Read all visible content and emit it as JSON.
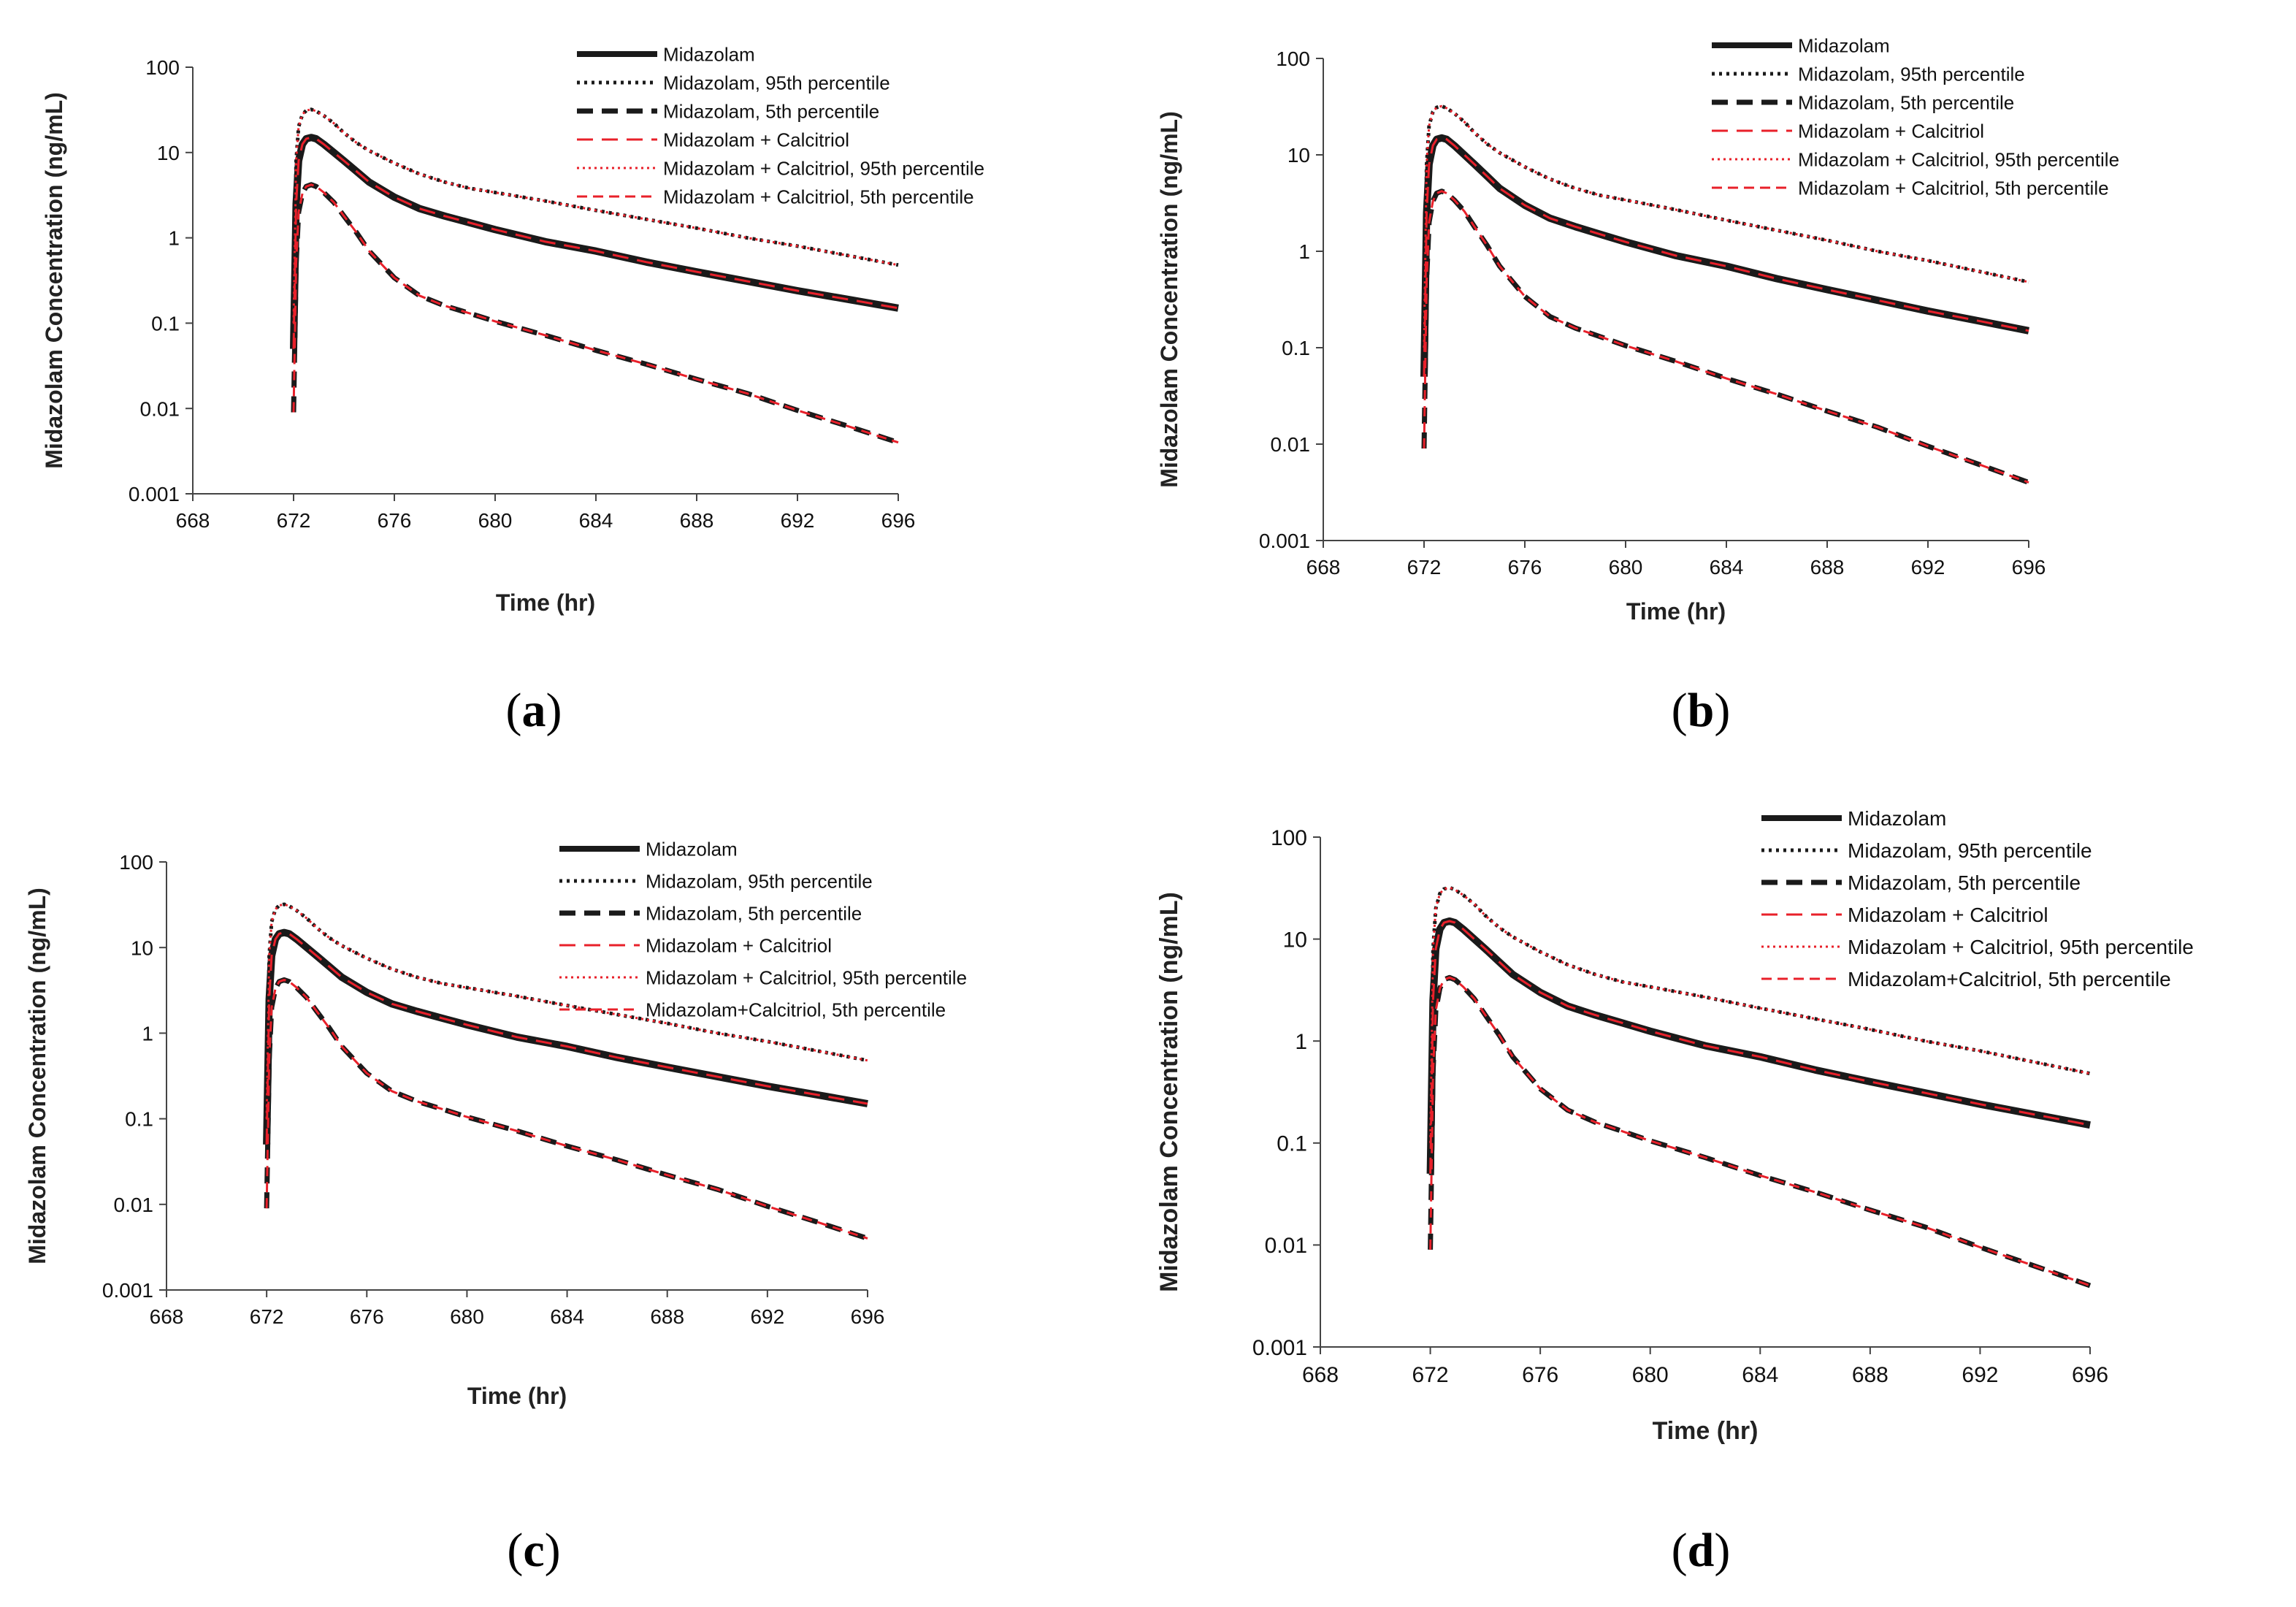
{
  "colors": {
    "black": "#1a1a1a",
    "red": "#e8202a",
    "axis": "#444444"
  },
  "chart_data": [
    {
      "type": "line",
      "panel_label": "a",
      "ylabel": "Midazolam Concentration (ng/mL)",
      "xlabel": "Time (hr)",
      "yscale": "log",
      "ylim": [
        0.001,
        100
      ],
      "xlim": [
        668,
        696
      ],
      "xticks": [
        "668",
        "672",
        "676",
        "680",
        "684",
        "688",
        "692",
        "696"
      ],
      "yticks": [
        "0.001",
        "0.01",
        "0.1",
        "1",
        "10",
        "100"
      ],
      "legend": [
        "Midazolam",
        "Midazolam, 95th percentile",
        "Midazolam, 5th percentile",
        "Midazolam + Calcitriol",
        "Midazolam + Calcitriol, 95th percentile",
        "Midazolam + Calcitriol, 5th percentile"
      ]
    },
    {
      "type": "line",
      "panel_label": "b",
      "ylabel": "Midazolam Concentration (ng/mL)",
      "xlabel": "Time (hr)",
      "yscale": "log",
      "ylim": [
        0.001,
        100
      ],
      "xlim": [
        668,
        696
      ],
      "xticks": [
        "668",
        "672",
        "676",
        "680",
        "684",
        "688",
        "692",
        "696"
      ],
      "yticks": [
        "0.001",
        "0.01",
        "0.1",
        "1",
        "10",
        "100"
      ],
      "legend": [
        "Midazolam",
        "Midazolam, 95th percentile",
        "Midazolam, 5th percentile",
        "Midazolam + Calcitriol",
        "Midazolam + Calcitriol, 95th percentile",
        "Midazolam + Calcitriol, 5th percentile"
      ]
    },
    {
      "type": "line",
      "panel_label": "c",
      "ylabel": "Midazolam Concentration (ng/mL)",
      "xlabel": "Time (hr)",
      "yscale": "log",
      "ylim": [
        0.001,
        100
      ],
      "xlim": [
        668,
        696
      ],
      "xticks": [
        "668",
        "672",
        "676",
        "680",
        "684",
        "688",
        "692",
        "696"
      ],
      "yticks": [
        "0.001",
        "0.01",
        "0.1",
        "1",
        "10",
        "100"
      ],
      "legend": [
        "Midazolam",
        "Midazolam, 95th percentile",
        "Midazolam, 5th percentile",
        "Midazolam + Calcitriol",
        "Midazolam + Calcitriol, 95th percentile",
        "Midazolam+Calcitriol, 5th percentile"
      ]
    },
    {
      "type": "line",
      "panel_label": "d",
      "ylabel": "Midazolam Concentration (ng/mL)",
      "xlabel": "Time (hr)",
      "yscale": "log",
      "ylim": [
        0.001,
        100
      ],
      "xlim": [
        668,
        696
      ],
      "xticks": [
        "668",
        "672",
        "676",
        "680",
        "684",
        "688",
        "692",
        "696"
      ],
      "yticks": [
        "0.001",
        "0.01",
        "0.1",
        "1",
        "10",
        "100"
      ],
      "legend": [
        "Midazolam",
        "Midazolam, 95th percentile",
        "Midazolam, 5th percentile",
        "Midazolam + Calcitriol",
        "Midazolam + Calcitriol, 95th percentile",
        "Midazolam+Calcitriol, 5th percentile"
      ]
    }
  ],
  "series_data": {
    "x": [
      672,
      672.1,
      672.2,
      672.35,
      672.5,
      672.7,
      672.9,
      673.2,
      673.6,
      674,
      674.5,
      675,
      676,
      677,
      678,
      679,
      680,
      682,
      684,
      686,
      688,
      690,
      692,
      694,
      696
    ],
    "median": [
      0.05,
      2.5,
      8,
      12.5,
      14.5,
      15,
      14.5,
      12.5,
      10,
      8,
      6,
      4.5,
      3,
      2.2,
      1.8,
      1.5,
      1.25,
      0.9,
      0.7,
      0.52,
      0.4,
      0.31,
      0.24,
      0.19,
      0.15
    ],
    "p95": [
      0.1,
      8,
      20,
      28,
      31,
      32,
      30.5,
      27,
      22,
      17,
      13,
      10.5,
      7.5,
      5.6,
      4.5,
      3.8,
      3.4,
      2.7,
      2.1,
      1.65,
      1.3,
      1.0,
      0.8,
      0.62,
      0.48
    ],
    "p5": [
      0.009,
      0.5,
      2.0,
      3.3,
      4.0,
      4.2,
      4.0,
      3.4,
      2.6,
      1.8,
      1.15,
      0.7,
      0.34,
      0.21,
      0.16,
      0.13,
      0.105,
      0.072,
      0.048,
      0.033,
      0.022,
      0.015,
      0.0095,
      0.0062,
      0.004
    ]
  },
  "captions": [
    "a",
    "b",
    "c",
    "d"
  ]
}
